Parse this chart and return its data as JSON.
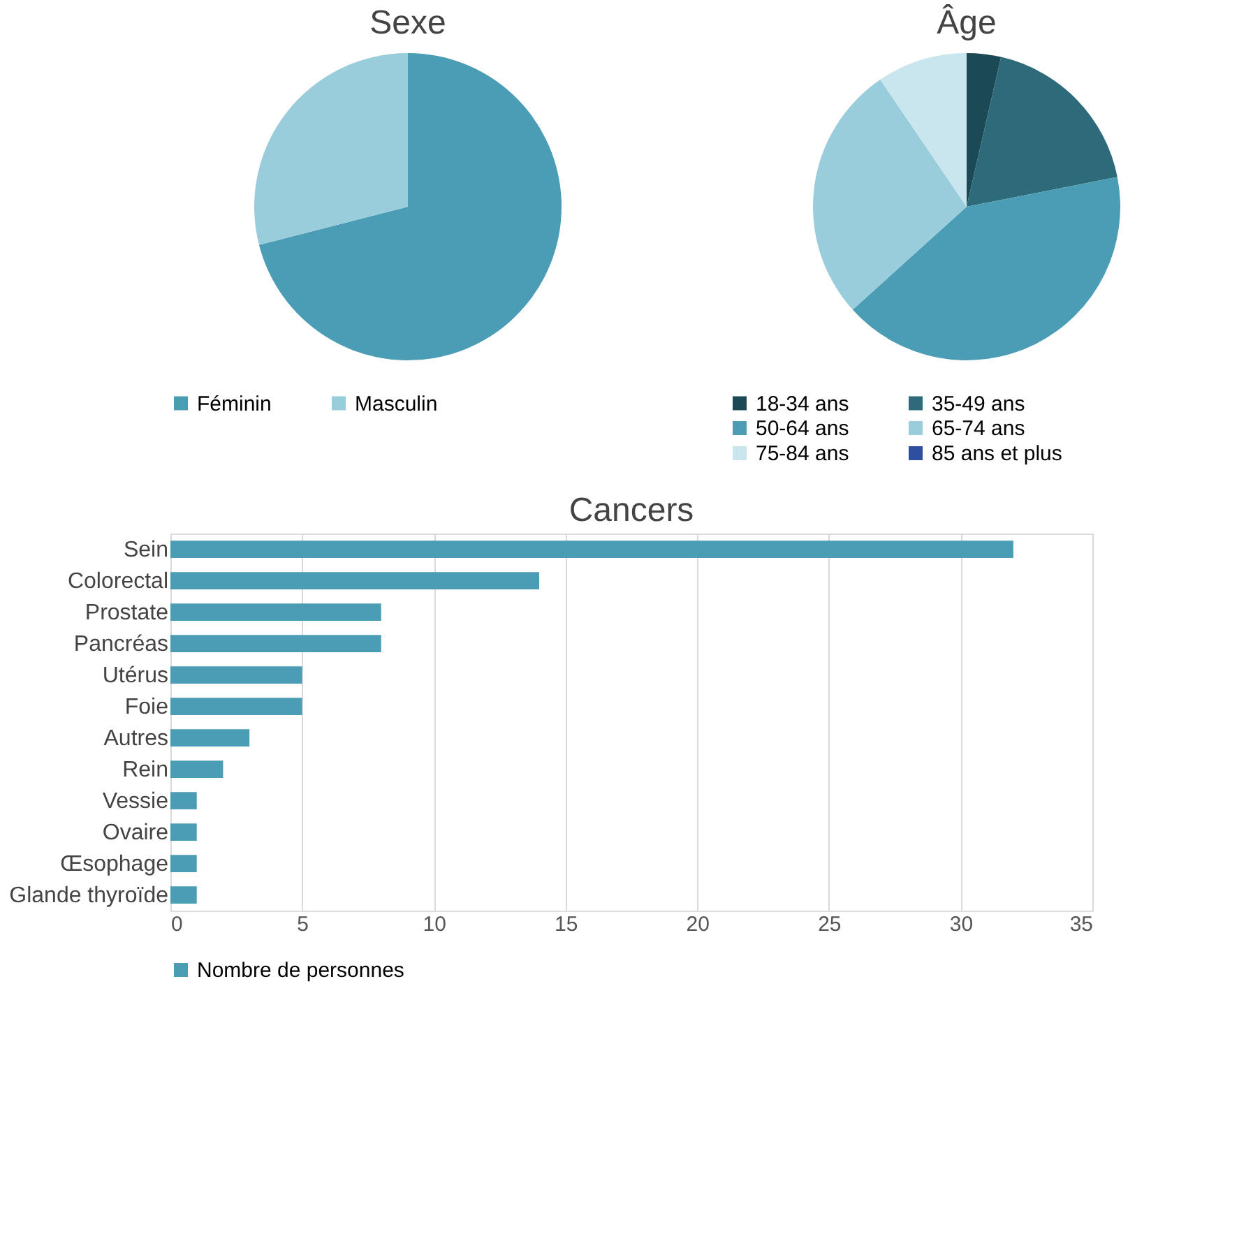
{
  "chart_data": [
    {
      "type": "pie",
      "title": "Sexe",
      "categories": [
        "Féminin",
        "Masculin"
      ],
      "values": [
        71,
        29
      ],
      "colors": [
        "#4a9db5",
        "#99cddb"
      ],
      "legend": "bottom"
    },
    {
      "type": "pie",
      "title": "Âge",
      "categories": [
        "18-34 ans",
        "35-49 ans",
        "50-64 ans",
        "65-74 ans",
        "75-84 ans",
        "85 ans et plus"
      ],
      "values": [
        3.6,
        18.3,
        41.4,
        27.2,
        9.5,
        0
      ],
      "colors": [
        "#1b4a55",
        "#2e6b7a",
        "#4a9db5",
        "#99cddb",
        "#c9e6ef",
        "#2e4fa0"
      ],
      "legend": "bottom"
    },
    {
      "type": "bar",
      "title": "Cancers",
      "orientation": "horizontal",
      "categories": [
        "Sein",
        "Colorectal",
        "Prostate",
        "Pancréas",
        "Utérus",
        "Foie",
        "Autres",
        "Rein",
        "Vessie",
        "Ovaire",
        "Œsophage",
        "Glande thyroïde"
      ],
      "series": [
        {
          "name": "Nombre de personnes",
          "color": "#4a9db5",
          "values": [
            32,
            14,
            8,
            8,
            5,
            5,
            3,
            2,
            1,
            1,
            1,
            1
          ]
        }
      ],
      "xlim": [
        0,
        35
      ],
      "xticks": [
        0,
        5,
        10,
        15,
        20,
        25,
        30,
        35
      ],
      "grid": "x",
      "legend": "bottom"
    }
  ]
}
